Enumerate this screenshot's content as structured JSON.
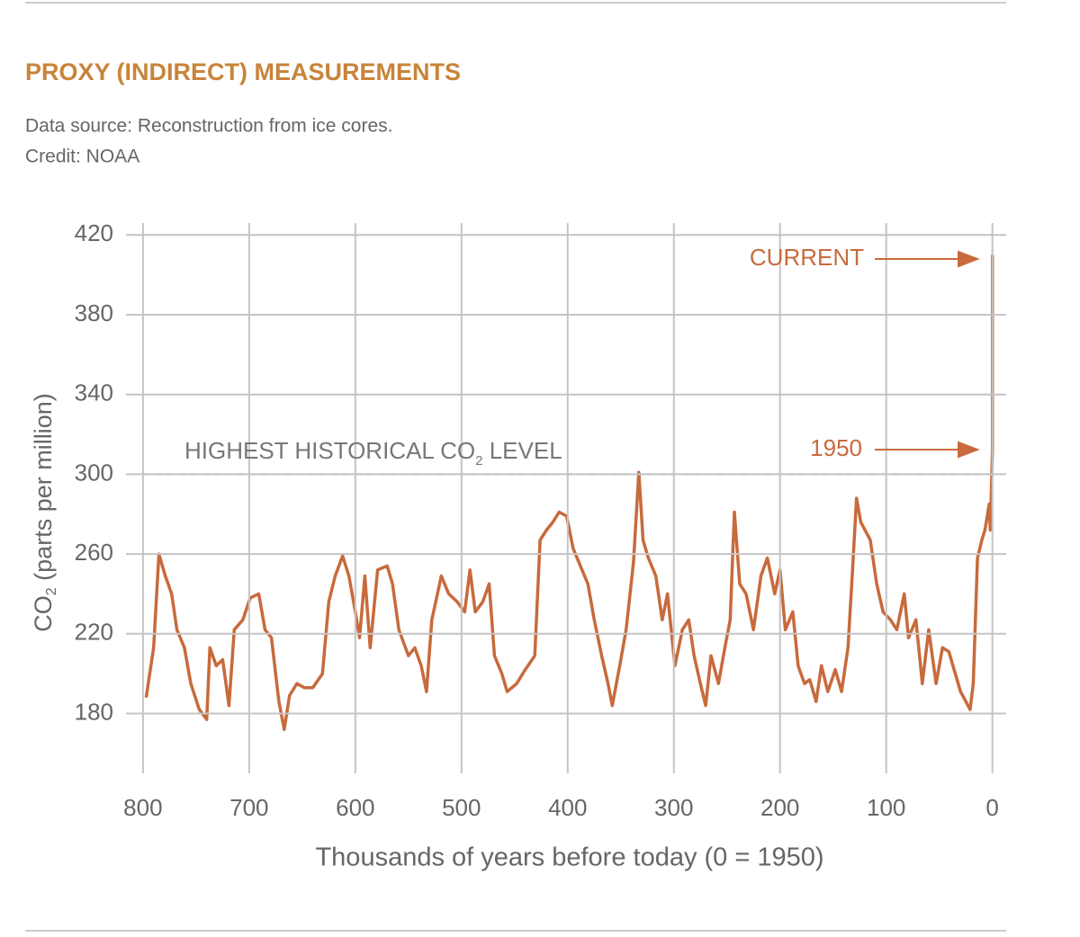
{
  "chart_data": {
    "type": "line",
    "title": "PROXY (INDIRECT) MEASUREMENTS",
    "subtitle": [
      "Data source: Reconstruction from ice cores.",
      "Credit: NOAA"
    ],
    "y_label": {
      "before": "CO",
      "subscript": "2",
      "after": " (parts per million)"
    },
    "x_label": "Thousands of years before today (0 = 1950)",
    "xlim": [
      816,
      -13
    ],
    "ylim": [
      150,
      426
    ],
    "xticks": [
      800,
      700,
      600,
      500,
      400,
      300,
      200,
      100,
      0
    ],
    "yticks": [
      180,
      220,
      260,
      300,
      340,
      380,
      420
    ],
    "grid": true,
    "color": "#c86a3c",
    "reference_line": {
      "value": 300,
      "before": "HIGHEST HISTORICAL CO",
      "subscript": "2",
      "after": " LEVEL"
    },
    "annotations": [
      "CURRENT",
      "1950"
    ],
    "x": [
      797,
      790,
      785,
      779,
      773,
      768,
      761,
      755,
      747,
      740,
      737,
      731,
      725,
      719,
      714,
      706,
      699,
      691,
      685,
      679,
      672,
      667,
      662,
      655,
      648,
      640,
      631,
      625,
      619,
      612,
      606,
      600,
      596,
      591,
      586,
      579,
      570,
      565,
      559,
      550,
      544,
      538,
      533,
      528,
      519,
      512,
      504,
      497,
      492,
      487,
      480,
      474,
      469,
      462,
      457,
      448,
      440,
      431,
      426,
      420,
      414,
      408,
      401,
      395,
      388,
      381,
      375,
      368,
      362,
      358,
      351,
      345,
      338,
      333,
      329,
      324,
      317,
      311,
      306,
      299,
      292,
      286,
      281,
      275,
      270,
      265,
      258,
      252,
      247,
      243,
      238,
      232,
      225,
      218,
      212,
      205,
      200,
      195,
      188,
      183,
      177,
      172,
      166,
      161,
      155,
      148,
      142,
      136,
      132,
      128,
      124,
      120,
      115,
      109,
      103,
      96,
      90,
      83,
      79,
      72,
      66,
      60,
      53,
      47,
      41,
      35,
      30,
      25,
      21,
      18,
      14,
      10,
      7,
      3,
      2,
      0,
      0
    ],
    "values": [
      188,
      213,
      260,
      249,
      240,
      222,
      213,
      195,
      182,
      177,
      213,
      204,
      207,
      184,
      222,
      227,
      238,
      240,
      222,
      218,
      186,
      172,
      189,
      195,
      193,
      193,
      200,
      236,
      249,
      259,
      249,
      231,
      218,
      249,
      213,
      252,
      254,
      245,
      222,
      209,
      213,
      204,
      191,
      227,
      249,
      240,
      236,
      231,
      252,
      231,
      236,
      245,
      209,
      200,
      191,
      195,
      202,
      209,
      267,
      272,
      276,
      281,
      279,
      263,
      254,
      245,
      227,
      209,
      195,
      184,
      204,
      222,
      256,
      301,
      267,
      258,
      249,
      227,
      240,
      204,
      222,
      227,
      209,
      195,
      184,
      209,
      195,
      213,
      227,
      281,
      245,
      240,
      222,
      249,
      258,
      240,
      252,
      222,
      231,
      204,
      195,
      197,
      186,
      204,
      191,
      202,
      191,
      213,
      249,
      288,
      276,
      272,
      267,
      245,
      231,
      227,
      222,
      240,
      218,
      227,
      195,
      222,
      195,
      213,
      211,
      200,
      191,
      186,
      182,
      195,
      258,
      267,
      272,
      285,
      272,
      312,
      410
    ]
  }
}
